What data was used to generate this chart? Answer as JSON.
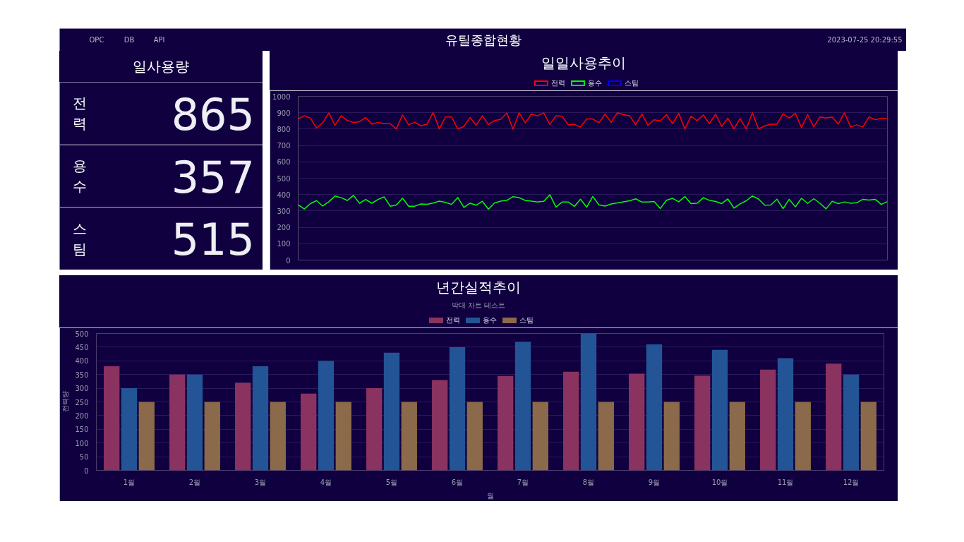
{
  "chart_data": [
    {
      "type": "other",
      "title": "유틸종합현황",
      "annotations": [
        "OPC",
        "DB",
        "API",
        "2023-07-25 20:29:55"
      ]
    },
    {
      "type": "other",
      "title": "일사용량",
      "categories": [
        "전력",
        "용수",
        "스팀"
      ],
      "values": [
        865,
        357,
        515
      ],
      "data_labels": true
    },
    {
      "type": "line",
      "title": "일일사용추이",
      "categories": [
        null,
        null,
        null,
        null,
        null,
        null,
        null,
        null,
        null,
        null,
        null,
        null,
        null,
        null,
        null,
        null,
        null,
        null,
        null,
        null,
        null,
        null,
        null,
        null,
        null,
        null,
        null,
        null,
        null,
        null,
        null,
        null,
        null,
        null,
        null,
        null,
        null,
        null,
        null,
        null,
        null,
        null,
        null,
        null,
        null,
        null,
        null,
        null,
        null,
        null,
        null,
        null,
        null,
        null,
        null,
        null,
        null,
        null,
        null,
        null,
        null,
        null,
        null,
        null,
        null,
        null,
        null,
        null,
        null,
        null,
        null,
        null,
        null,
        null,
        null,
        null,
        null,
        null,
        null,
        null,
        null,
        null,
        null,
        null,
        null,
        null,
        null,
        null,
        null,
        null,
        null,
        null,
        null,
        null,
        null,
        null,
        null
      ],
      "ylim": [
        0,
        1000
      ],
      "yticks": [
        0,
        100,
        200,
        300,
        400,
        500,
        600,
        700,
        800,
        900,
        1000
      ],
      "tick_labels": "y",
      "grid": "y",
      "legend": "top",
      "series": [
        {
          "name": "전력",
          "color": "#ff0000",
          "values": [
            862,
            881,
            867,
            807,
            838,
            899,
            823,
            881,
            852,
            841,
            845,
            871,
            830,
            841,
            833,
            833,
            801,
            886,
            826,
            842,
            820,
            830,
            901,
            801,
            874,
            874,
            801,
            816,
            870,
            823,
            881,
            828,
            852,
            859,
            899,
            800,
            899,
            838,
            891,
            881,
            899,
            828,
            881,
            878,
            826,
            828,
            812,
            862,
            862,
            838,
            891,
            841,
            900,
            888,
            881,
            826,
            893,
            823,
            857,
            849,
            888,
            833,
            896,
            801,
            878,
            852,
            886,
            833,
            891,
            816,
            867,
            801,
            864,
            801,
            900,
            801,
            819,
            830,
            830,
            893,
            867,
            896,
            809,
            888,
            813,
            874,
            867,
            874,
            830,
            899,
            813,
            826,
            813,
            874,
            857,
            867,
            862
          ]
        },
        {
          "name": "용수",
          "color": "#00ff00",
          "values": [
            338,
            312,
            345,
            363,
            330,
            356,
            391,
            381,
            364,
            395,
            347,
            370,
            347,
            370,
            386,
            329,
            336,
            378,
            329,
            329,
            343,
            341,
            348,
            360,
            352,
            340,
            382,
            322,
            347,
            335,
            359,
            310,
            349,
            360,
            365,
            387,
            381,
            364,
            360,
            355,
            359,
            399,
            324,
            354,
            355,
            328,
            372,
            323,
            388,
            337,
            330,
            343,
            349,
            356,
            362,
            374,
            354,
            355,
            358,
            315,
            365,
            377,
            356,
            388,
            345,
            347,
            381,
            365,
            358,
            345,
            373,
            317,
            343,
            362,
            392,
            373,
            335,
            336,
            372,
            314,
            371,
            325,
            377,
            346,
            375,
            347,
            313,
            359,
            345,
            355,
            347,
            350,
            371,
            366,
            371,
            340,
            357
          ]
        },
        {
          "name": "스팀",
          "color": "#0000ff",
          "values": [
            null,
            null,
            null,
            null,
            null,
            null,
            null,
            null,
            null,
            null,
            null,
            null,
            null,
            null,
            null,
            null,
            null,
            null,
            null,
            null,
            null,
            null,
            null,
            null,
            null,
            null,
            null,
            null,
            null,
            null,
            null,
            null,
            null,
            null,
            null,
            null,
            null,
            null,
            null,
            null,
            null,
            null,
            null,
            null,
            null,
            null,
            null,
            null,
            null,
            null,
            null,
            null,
            null,
            null,
            null,
            null,
            null,
            null,
            null,
            null,
            null,
            null,
            null,
            null,
            null,
            null,
            null,
            null,
            null,
            null,
            null,
            null,
            null,
            null,
            null,
            null,
            null,
            null,
            null,
            null,
            null,
            null,
            null,
            null,
            null,
            null,
            null,
            null,
            null,
            null,
            null,
            null,
            null,
            null,
            null,
            null,
            null
          ]
        }
      ]
    },
    {
      "type": "bar",
      "title": "년간실적추이",
      "subtitle": "막대 차트 테스트",
      "xlabel": "월",
      "ylabel": "전력량",
      "categories": [
        "1월",
        "2월",
        "3월",
        "4월",
        "5월",
        "6월",
        "7월",
        "8월",
        "9월",
        "10월",
        "11월",
        "12월"
      ],
      "ylim": [
        0,
        500
      ],
      "yticks": [
        0,
        50,
        100,
        150,
        200,
        250,
        300,
        350,
        400,
        450,
        500
      ],
      "grid": "y",
      "legend": "top",
      "series": [
        {
          "name": "전력",
          "color": "#8b3360",
          "values": [
            380,
            350,
            320,
            280,
            300,
            330,
            345,
            360,
            353,
            346,
            368,
            390
          ]
        },
        {
          "name": "용수",
          "color": "#235596",
          "values": [
            300,
            350,
            380,
            400,
            430,
            450,
            470,
            500,
            460,
            440,
            410,
            350
          ]
        },
        {
          "name": "스팀",
          "color": "#8a6a4a",
          "values": [
            250,
            250,
            250,
            250,
            250,
            250,
            250,
            250,
            250,
            250,
            250,
            250
          ]
        }
      ]
    }
  ]
}
